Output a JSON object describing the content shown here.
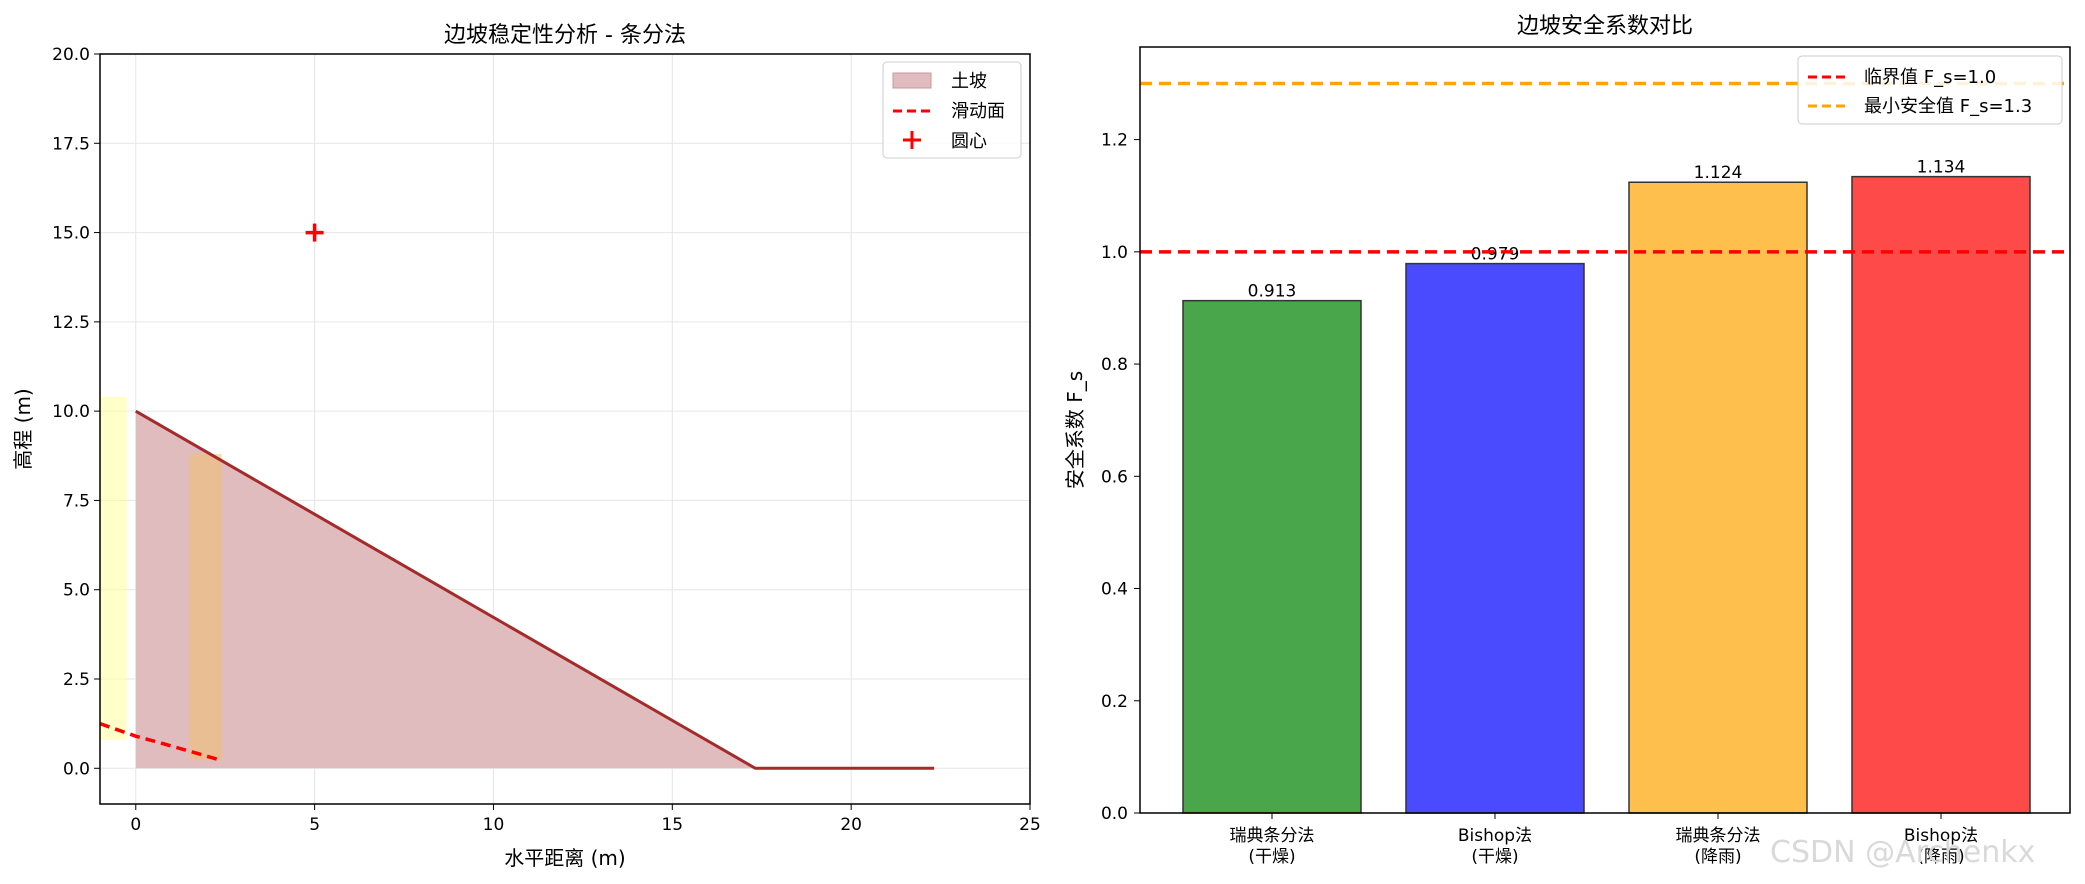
{
  "watermark": "CSDN @Archenkx",
  "chart_data": [
    {
      "type": "area",
      "title": "边坡稳定性分析 - 条分法",
      "xlabel": "水平距离 (m)",
      "ylabel": "高程 (m)",
      "xlim": [
        -1,
        25
      ],
      "ylim": [
        -1,
        20
      ],
      "xticks": [
        0,
        5,
        10,
        15,
        20,
        25
      ],
      "yticks": [
        0.0,
        2.5,
        5.0,
        7.5,
        10.0,
        12.5,
        15.0,
        17.5,
        20.0
      ],
      "xtick_labels": [
        "0",
        "5",
        "10",
        "15",
        "20",
        "25"
      ],
      "ytick_labels": [
        "0.0",
        "2.5",
        "5.0",
        "7.5",
        "10.0",
        "12.5",
        "15.0",
        "17.5",
        "20.0"
      ],
      "grid": true,
      "legend_placement": "top-right",
      "legend": [
        "土坡",
        "滑动面",
        "圆心"
      ],
      "slope_profile": [
        [
          0,
          0
        ],
        [
          0,
          10
        ],
        [
          17.32,
          0
        ],
        [
          22.32,
          0
        ]
      ],
      "slope_fill_color": "#e0bcbf",
      "slope_line_color": "#a52a2a",
      "slip_surface": [
        [
          -1,
          1.25
        ],
        [
          0,
          0.9
        ],
        [
          0.8,
          0.68
        ],
        [
          1.6,
          0.45
        ],
        [
          2.4,
          0.22
        ]
      ],
      "slip_color": "#ff0000",
      "center": [
        5,
        15
      ],
      "slices": [
        {
          "x0": -1,
          "x1": -0.25,
          "top": 10.4,
          "bottom": 0.8,
          "color": "#ffff99"
        },
        {
          "x0": 1.5,
          "x1": 2.4,
          "top": 8.8,
          "bottom": 0.22,
          "color": "#f0c070"
        }
      ]
    },
    {
      "type": "bar",
      "title": "边坡安全系数对比",
      "ylabel": "安全系数 F_s",
      "categories": [
        "瑞典条分法\n(干燥)",
        "Bishop法\n(干燥)",
        "瑞典条分法\n(降雨)",
        "Bishop法\n(降雨)"
      ],
      "values": [
        0.913,
        0.979,
        1.124,
        1.134
      ],
      "data_labels": [
        "0.913",
        "0.979",
        "1.124",
        "1.134"
      ],
      "colors": [
        "#4aa64a",
        "#4a4aff",
        "#ffbf4d",
        "#ff4a4a"
      ],
      "ylim": [
        0,
        1.365
      ],
      "yticks": [
        0.0,
        0.2,
        0.4,
        0.6,
        0.8,
        1.0,
        1.2
      ],
      "ytick_labels": [
        "0.0",
        "0.2",
        "0.4",
        "0.6",
        "0.8",
        "1.0",
        "1.2"
      ],
      "grid": false,
      "legend_placement": "top-right",
      "reference_lines": [
        {
          "name": "临界值 F_s=1.0",
          "value": 1.0,
          "color": "#ff0000"
        },
        {
          "name": "最小安全值 F_s=1.3",
          "value": 1.3,
          "color": "#ffa500"
        }
      ]
    }
  ]
}
